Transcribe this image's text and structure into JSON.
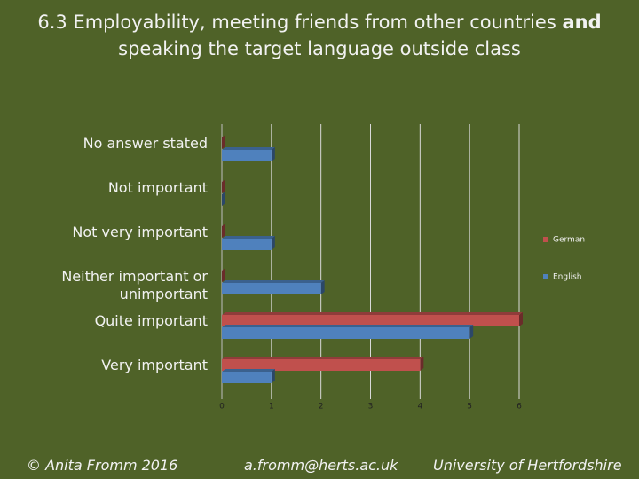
{
  "chart_data": {
    "type": "hbar",
    "title": [
      "6.3 Employability, meeting friends from other countries ",
      "and",
      " speaking the target language outside class"
    ],
    "categories": [
      "No answer stated",
      "Not important",
      "Not very important",
      "Neither important or unimportant",
      "Quite important",
      "Very important"
    ],
    "series": [
      {
        "name": "German",
        "color": "#c0504d",
        "values": [
          0,
          0,
          0,
          0,
          6,
          4
        ]
      },
      {
        "name": "English",
        "color": "#4f81bd",
        "values": [
          1,
          0,
          1,
          2,
          5,
          1
        ]
      }
    ],
    "xlim": [
      0,
      6
    ],
    "xticks": [
      0,
      1,
      2,
      3,
      4,
      5,
      6
    ],
    "grid": true,
    "legend": "right"
  },
  "footer": {
    "left": "© Anita Fromm 2016",
    "center": "a.fromm@herts.ac.uk",
    "right": "University of Hertfordshire"
  }
}
